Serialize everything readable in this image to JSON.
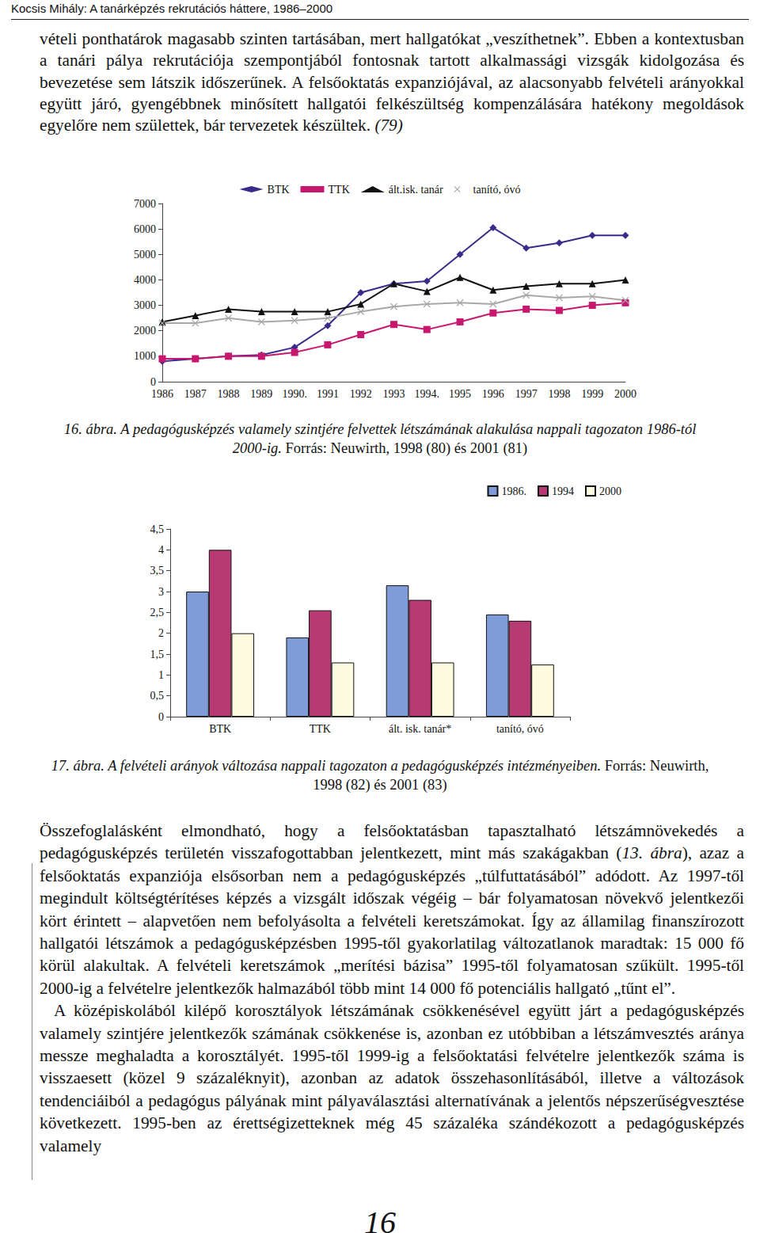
{
  "header": "Kocsis Mihály: A tanárképzés rekrutációs háttere, 1986–2000",
  "paragraphs_top": [
    [
      {
        "text": "vételi ponthatárok magasabb szinten tartásában, mert hallgatókat „veszíthetnek”. Ebben a kontextusban a tanári pálya rekrutációja szempontjából fontosnak tartott alkalmassági vizsgák kidolgozása és bevezetése sem látszik időszerűnek. A felsőoktatás expanziójával, az alacsonyabb felvételi arányokkal együtt járó, gyengébbnek minősített hallgatói felkészültség kompenzálására hatékony megoldások egyelőre nem születtek, bár tervezetek készültek. "
      },
      {
        "text": "(79)",
        "italic": true
      }
    ]
  ],
  "chart_data": [
    {
      "type": "line",
      "categories": [
        "1986",
        "1987",
        "1988",
        "1989",
        "1990.",
        "1991",
        "1992",
        "1993",
        "1994.",
        "1995",
        "1996",
        "1997",
        "1998",
        "1999",
        "2000"
      ],
      "series": [
        {
          "name": "BTK",
          "color": "#3b2a8a",
          "marker": "diamond",
          "values": [
            800,
            900,
            1000,
            1050,
            1350,
            2200,
            3500,
            3850,
            3950,
            5000,
            6050,
            5250,
            5450,
            5750,
            5750
          ]
        },
        {
          "name": "TTK",
          "color": "#c8176e",
          "marker": "square",
          "values": [
            900,
            900,
            1000,
            1000,
            1150,
            1450,
            1850,
            2250,
            2050,
            2350,
            2700,
            2850,
            2800,
            3000,
            3100
          ]
        },
        {
          "name": "ált.isk. tanár",
          "color": "#111111",
          "marker": "triangle",
          "values": [
            2350,
            2600,
            2850,
            2750,
            2750,
            2750,
            3050,
            3850,
            3550,
            4100,
            3600,
            3750,
            3850,
            3850,
            4000
          ]
        },
        {
          "name": "tanító, óvó",
          "color": "#a8a8a8",
          "marker": "x",
          "values": [
            2300,
            2300,
            2500,
            2350,
            2400,
            2500,
            2750,
            2950,
            3050,
            3100,
            3050,
            3400,
            3300,
            3350,
            3200
          ]
        }
      ],
      "ylim": [
        0,
        7000
      ],
      "yticks": [
        0,
        1000,
        2000,
        3000,
        4000,
        5000,
        6000,
        7000
      ],
      "grid": false,
      "legend": "top"
    },
    {
      "type": "bar",
      "categories": [
        "BTK",
        "TTK",
        "ált. isk. tanár*",
        "tanító, óvó"
      ],
      "series": [
        {
          "name": "1986.",
          "color": "#7f9bd8",
          "values": [
            3.0,
            1.9,
            3.15,
            2.45
          ]
        },
        {
          "name": "1994",
          "color": "#b83a72",
          "values": [
            4.0,
            2.55,
            2.8,
            2.3
          ]
        },
        {
          "name": "2000",
          "color": "#fdfbe0",
          "values": [
            2.0,
            1.3,
            1.3,
            1.25
          ]
        }
      ],
      "ylim": [
        0,
        4.5
      ],
      "yticks": [
        0,
        {
          "value": 0.5,
          "label": "0,5"
        },
        1,
        {
          "value": 1.5,
          "label": "1,5"
        },
        2,
        {
          "value": 2.5,
          "label": "2,5"
        },
        3,
        {
          "value": 3.5,
          "label": "3,5"
        },
        4,
        {
          "value": 4.5,
          "label": "4,5"
        }
      ],
      "grid": false,
      "legend": "top-right"
    }
  ],
  "captions": [
    {
      "label": "16. ábra.",
      "text": "A pedagógusképzés valamely szintjére felvettek létszámának alakulása nappali tagozaton 1986-tól 2000-ig.",
      "source": "Forrás: Neuwirth, 1998 (80) és 2001 (81)"
    },
    {
      "label": "17. ábra.",
      "text": "A felvételi arányok változása nappali tagozaton a pedagógusképzés intézményeiben.",
      "source": "Forrás: Neuwirth, 1998 (82) és 2001 (83)"
    }
  ],
  "paragraphs_bottom": [
    [
      {
        "text": "Összefoglalásként elmondható, hogy a felsőoktatásban tapasztalható létszámnövekedés a pedagógusképzés területén visszafogottabban jelentkezett, mint más szakágakban ("
      },
      {
        "text": "13. ábra",
        "italic": true
      },
      {
        "text": "), azaz a felsőoktatás expanziója elsősorban nem a pedagógusképzés „túlfuttatásából” adódott. Az 1997-től megindult költségtérítéses képzés a vizsgált időszak végéig – bár folyamatosan növekvő jelentkezői kört érintett – alapvetően nem befolyásolta a felvételi keretszámokat. Így az államilag finanszírozott hallgatói létszámok a pedagógusképzésben 1995-től gyakorlatilag változatlanok maradtak: 15 000 fő körül alakultak. A felvételi keretszámok „merítési bázisa” 1995-től folyamatosan szűkült. 1995-től 2000-ig a felvételre jelentkezők halmazából több mint 14 000 fő potenciális hallgató „tűnt el”."
      }
    ],
    [
      {
        "text": "A középiskolából kilépő korosztályok létszámának csökkenésével együtt járt a pedagógusképzés valamely szintjére jelentkezők számának csökkenése is, azonban ez utóbbiban a létszámvesztés aránya messze meghaladta a korosztályét. 1995-től 1999-ig a felsőoktatási felvételre jelentkezők száma is visszaesett (közel 9 százaléknyit), azonban az adatok összehasonlításából, illetve a változások tendenciáiból a pedagógus pályának mint pályaválasztási alternatívának a jelentős népszerűségvesztése következett. 1995-ben az érettségizetteknek még 45 százaléka szándékozott a pedagógusképzés valamely"
      }
    ]
  ],
  "page_number": "16"
}
